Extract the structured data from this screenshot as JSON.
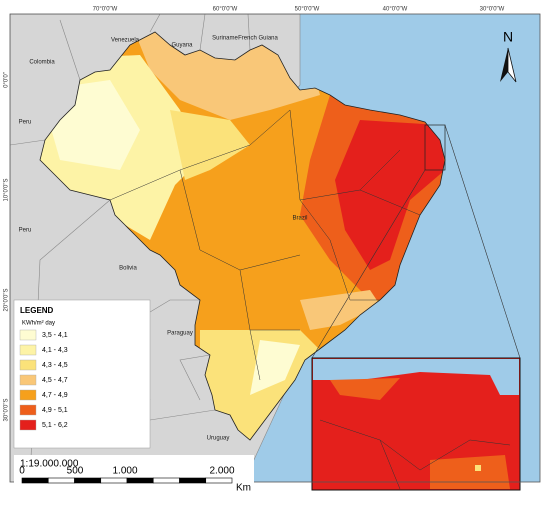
{
  "graticule": {
    "top": [
      "70°0'0\"W",
      "60°0'0\"W",
      "50°0'0\"W",
      "40°0'0\"W",
      "30°0'0\"W"
    ],
    "left": [
      "0°0'0\"",
      "10°0'0\"S",
      "20°0'0\"S",
      "30°0'0\"S"
    ]
  },
  "countries": [
    "Venezuela",
    "Guyana",
    "Suriname",
    "French Guiana",
    "Colombia",
    "Peru",
    "Peru",
    "Bolivia",
    "Paraguay",
    "Uruguay",
    "Brazil"
  ],
  "legend": {
    "title": "LEGEND",
    "unit": "KWh/m² day",
    "classes": [
      {
        "label": "3,5 - 4,1",
        "color": "#fefcd2"
      },
      {
        "label": "4,1 - 4,3",
        "color": "#fdf3a6"
      },
      {
        "label": "4,3 - 4,5",
        "color": "#fbe27a"
      },
      {
        "label": "4,5 - 4,7",
        "color": "#f9c778"
      },
      {
        "label": "4,7 - 4,9",
        "color": "#f6a01c"
      },
      {
        "label": "4,9 - 5,1",
        "color": "#ee5f1b"
      },
      {
        "label": "5,1 - 6,2",
        "color": "#e4201c"
      }
    ]
  },
  "scale": {
    "ratio": "1:19.000.000",
    "ticks": [
      "0",
      "500",
      "1.000",
      "2.000"
    ],
    "unit": "Km"
  },
  "north": "N"
}
